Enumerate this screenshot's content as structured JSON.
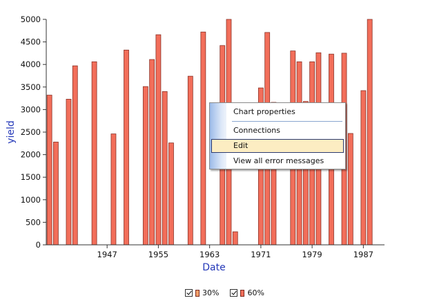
{
  "chart_data": {
    "type": "bar",
    "xlabel": "Date",
    "ylabel": "yield",
    "ylim": [
      0,
      5000
    ],
    "yticks": [
      0,
      500,
      1000,
      1500,
      2000,
      2500,
      3000,
      3500,
      4000,
      4500,
      5000
    ],
    "xlim": [
      1937.5,
      1990.3
    ],
    "xticks": [
      1947,
      1955,
      1963,
      1971,
      1979,
      1987
    ],
    "series": [
      {
        "name": "30%",
        "color": "#f4a06a",
        "x": [],
        "values": []
      },
      {
        "name": "60%",
        "color": "#f26e5a",
        "x": [
          1938,
          1939,
          1941,
          1942,
          1945,
          1948,
          1950,
          1953,
          1954,
          1955,
          1956,
          1957,
          1960,
          1962,
          1965,
          1966,
          1967,
          1971,
          1972,
          1973,
          1976,
          1977,
          1978,
          1979,
          1980,
          1982,
          1984,
          1985,
          1987,
          1988
        ],
        "values": [
          3320,
          2280,
          3230,
          3970,
          4060,
          2460,
          4320,
          3510,
          4110,
          4660,
          3400,
          2260,
          3740,
          4720,
          4420,
          5000,
          290,
          3480,
          4710,
          3160,
          4300,
          4060,
          3180,
          4060,
          4260,
          4230,
          4250,
          2470,
          3420,
          5000
        ]
      }
    ]
  },
  "legend": {
    "items": [
      {
        "label": "30%",
        "checked": true,
        "color": "#f4a06a"
      },
      {
        "label": "60%",
        "checked": true,
        "color": "#f26e5a"
      }
    ]
  },
  "context_menu": {
    "items": [
      {
        "label": "Chart properties"
      },
      {
        "label": "Connections"
      },
      {
        "label": "Edit"
      },
      {
        "label": "View all error messages"
      }
    ]
  }
}
